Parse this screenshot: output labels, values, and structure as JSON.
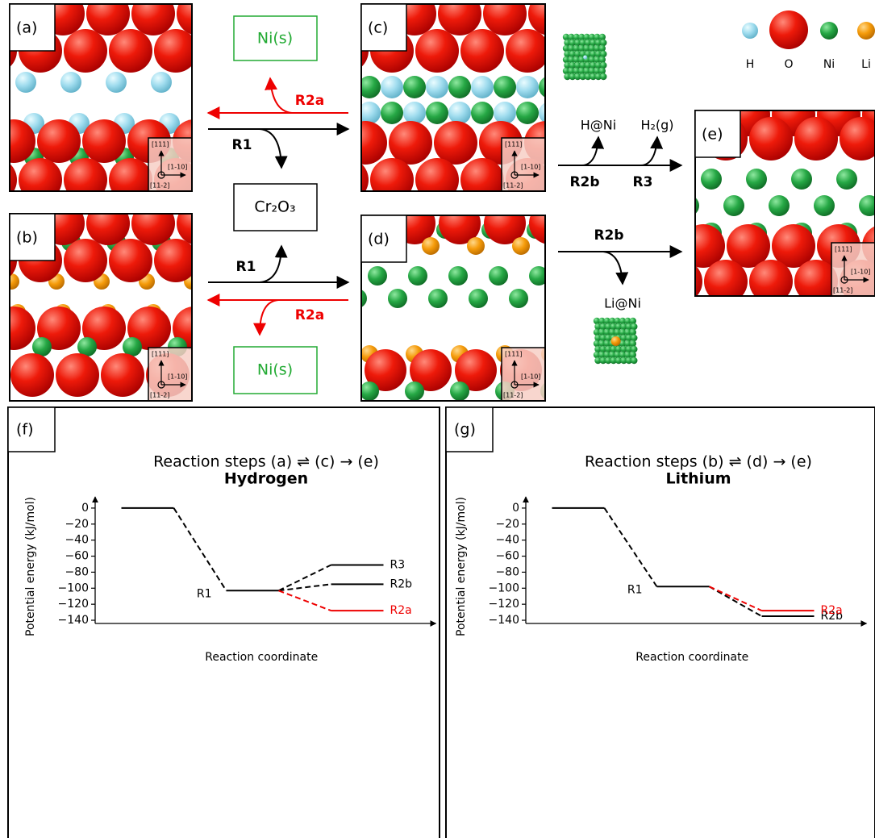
{
  "diagram": {
    "panel_labels": [
      "(a)",
      "(b)",
      "(c)",
      "(d)",
      "(e)"
    ],
    "legend": [
      "H",
      "O",
      "Ni",
      "Li"
    ],
    "axes": [
      "[111]",
      "[1-10]",
      "[11-2]"
    ],
    "products": {
      "ni_top": "Ni(s)",
      "ni_bottom": "Ni(s)",
      "cr_oxide": "Cr₂O₃",
      "h_at_ni": "H@Ni",
      "h2": "H₂(g)",
      "li_at_ni": "Li@Ni"
    },
    "reactions": [
      "R2a",
      "R1",
      "R1",
      "R2a",
      "R2b",
      "R3",
      "R2b"
    ]
  },
  "chart_data": [
    {
      "type": "line",
      "panel": "(f)",
      "title": "Reaction steps (a) ⇌ (c) → (e)",
      "subtitle": "Hydrogen",
      "ylabel": "Potential energy (kJ/mol)",
      "xlabel": "Reaction coordinate",
      "xlim": [
        -0.5,
        6
      ],
      "ylim": [
        -144,
        10
      ],
      "yticks": [
        0,
        {
          "value": -20,
          "label": "−20"
        },
        {
          "value": -40,
          "label": "−40"
        },
        {
          "value": -60,
          "label": "−60"
        },
        {
          "value": -80,
          "label": "−80"
        },
        {
          "value": -100,
          "label": "−100"
        },
        {
          "value": -120,
          "label": "−120"
        },
        {
          "value": -140,
          "label": "−140"
        }
      ],
      "series": [
        {
          "name": "R1",
          "color": "#000000",
          "x": [
            0,
            1,
            2,
            3
          ],
          "values": [
            0,
            0,
            -103,
            -103
          ]
        },
        {
          "name": "R3",
          "color": "#000000",
          "x": [
            3,
            4,
            5
          ],
          "values": [
            -103,
            -71,
            -71
          ]
        },
        {
          "name": "R2b",
          "color": "#000000",
          "x": [
            3,
            4,
            5
          ],
          "values": [
            -103,
            -95,
            -95
          ]
        },
        {
          "name": "R2a",
          "color": "#ee0000",
          "x": [
            3,
            4,
            5
          ],
          "values": [
            -103,
            -128,
            -128
          ]
        }
      ]
    },
    {
      "type": "line",
      "panel": "(g)",
      "title": "Reaction steps (b) ⇌ (d) → (e)",
      "subtitle": "Lithium",
      "ylabel": "Potential energy (kJ/mol)",
      "xlabel": "Reaction coordinate",
      "xlim": [
        -0.5,
        6
      ],
      "ylim": [
        -144,
        10
      ],
      "yticks": [
        0,
        {
          "value": -20,
          "label": "−20"
        },
        {
          "value": -40,
          "label": "−40"
        },
        {
          "value": -60,
          "label": "−60"
        },
        {
          "value": -80,
          "label": "−80"
        },
        {
          "value": -100,
          "label": "−100"
        },
        {
          "value": -120,
          "label": "−120"
        },
        {
          "value": -140,
          "label": "−140"
        }
      ],
      "series": [
        {
          "name": "R1",
          "color": "#000000",
          "x": [
            0,
            1,
            2,
            3
          ],
          "values": [
            0,
            0,
            -98,
            -98
          ]
        },
        {
          "name": "R2b",
          "color": "#000000",
          "x": [
            3,
            4,
            5
          ],
          "values": [
            -98,
            -135,
            -135
          ]
        },
        {
          "name": "R2a",
          "color": "#ee0000",
          "x": [
            3,
            4,
            5
          ],
          "values": [
            -98,
            -128,
            -128
          ]
        }
      ]
    }
  ]
}
